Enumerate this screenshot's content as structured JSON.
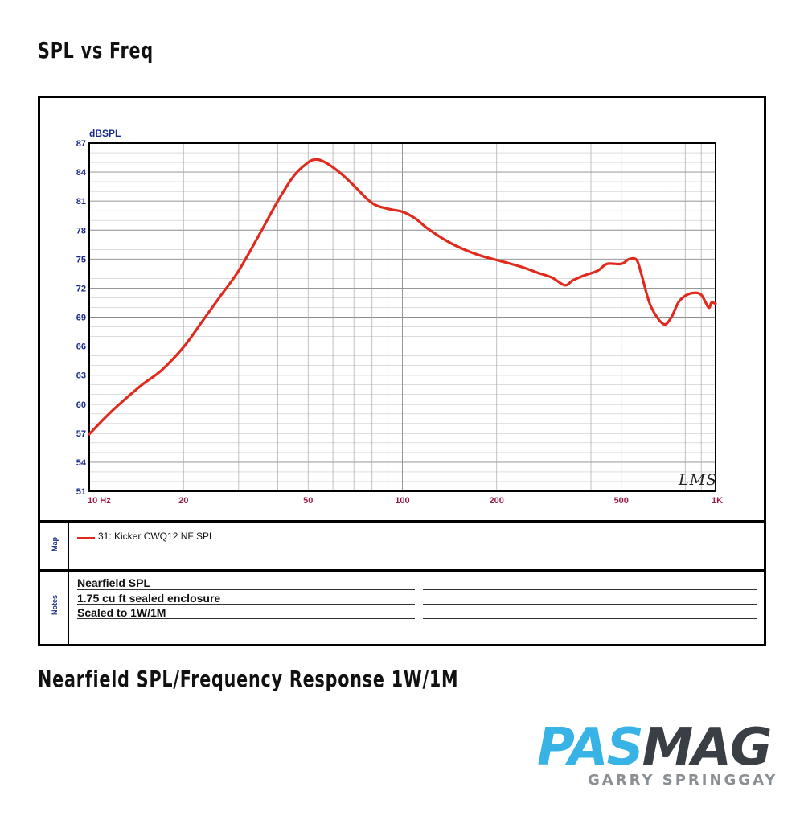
{
  "header": {
    "title": "SPL vs Freq"
  },
  "caption": "Nearfield SPL/Frequency Response 1W/1M",
  "chart_data": {
    "type": "line",
    "ylabel": "dBSPL",
    "xscale": "log",
    "xlim": [
      10,
      1000
    ],
    "ylim": [
      51,
      87
    ],
    "yticks": [
      87,
      84,
      81,
      78,
      75,
      72,
      69,
      66,
      63,
      60,
      57,
      54,
      51
    ],
    "xticks": [
      {
        "value": 10,
        "label": "10 Hz"
      },
      {
        "value": 20,
        "label": "20"
      },
      {
        "value": 50,
        "label": "50"
      },
      {
        "value": 100,
        "label": "100"
      },
      {
        "value": 200,
        "label": "200"
      },
      {
        "value": 500,
        "label": "500"
      },
      {
        "value": 1000,
        "label": "1K"
      }
    ],
    "grid": true,
    "watermark": "LMS",
    "series": [
      {
        "name": "31: Kicker CWQ12 NF SPL",
        "color": "#e02a1e",
        "x": [
          10,
          11,
          12,
          13,
          14,
          15,
          17,
          20,
          23,
          26,
          30,
          35,
          40,
          45,
          50,
          53,
          56,
          60,
          65,
          70,
          80,
          90,
          100,
          110,
          120,
          140,
          160,
          180,
          200,
          240,
          270,
          300,
          330,
          350,
          380,
          420,
          450,
          500,
          530,
          560,
          580,
          620,
          680,
          720,
          760,
          800,
          850,
          900,
          950,
          970,
          1000
        ],
        "y": [
          56.9,
          58.3,
          59.5,
          60.5,
          61.4,
          62.2,
          63.5,
          65.9,
          68.6,
          71.0,
          73.8,
          77.6,
          81.0,
          83.6,
          85.0,
          85.3,
          85.1,
          84.5,
          83.6,
          82.6,
          80.8,
          80.2,
          79.9,
          79.2,
          78.2,
          76.8,
          75.9,
          75.3,
          74.9,
          74.2,
          73.6,
          73.1,
          72.3,
          72.8,
          73.3,
          73.8,
          74.5,
          74.5,
          75.0,
          74.9,
          73.4,
          70.2,
          68.3,
          68.9,
          70.5,
          71.2,
          71.5,
          71.3,
          70.0,
          70.5,
          70.4
        ]
      }
    ]
  },
  "legend": {
    "label": "31: Kicker CWQ12 NF SPL",
    "section_label": "Map"
  },
  "notes": {
    "section_label": "Notes",
    "lines": [
      "Nearfield SPL",
      "1.75 cu ft sealed enclosure",
      "Scaled to 1W/1M"
    ]
  },
  "logo": {
    "part1": "PAS",
    "part2": "MAG",
    "byline": "GARRY SPRINGGAY"
  },
  "colors": {
    "axis_text_y": "#1a2a8a",
    "axis_text_x": "#9a1a4a",
    "grid": "#c8c8c8",
    "curve": "#e02a1e",
    "logo_blue": "#38b3e6",
    "logo_dark": "#3a3f45"
  }
}
